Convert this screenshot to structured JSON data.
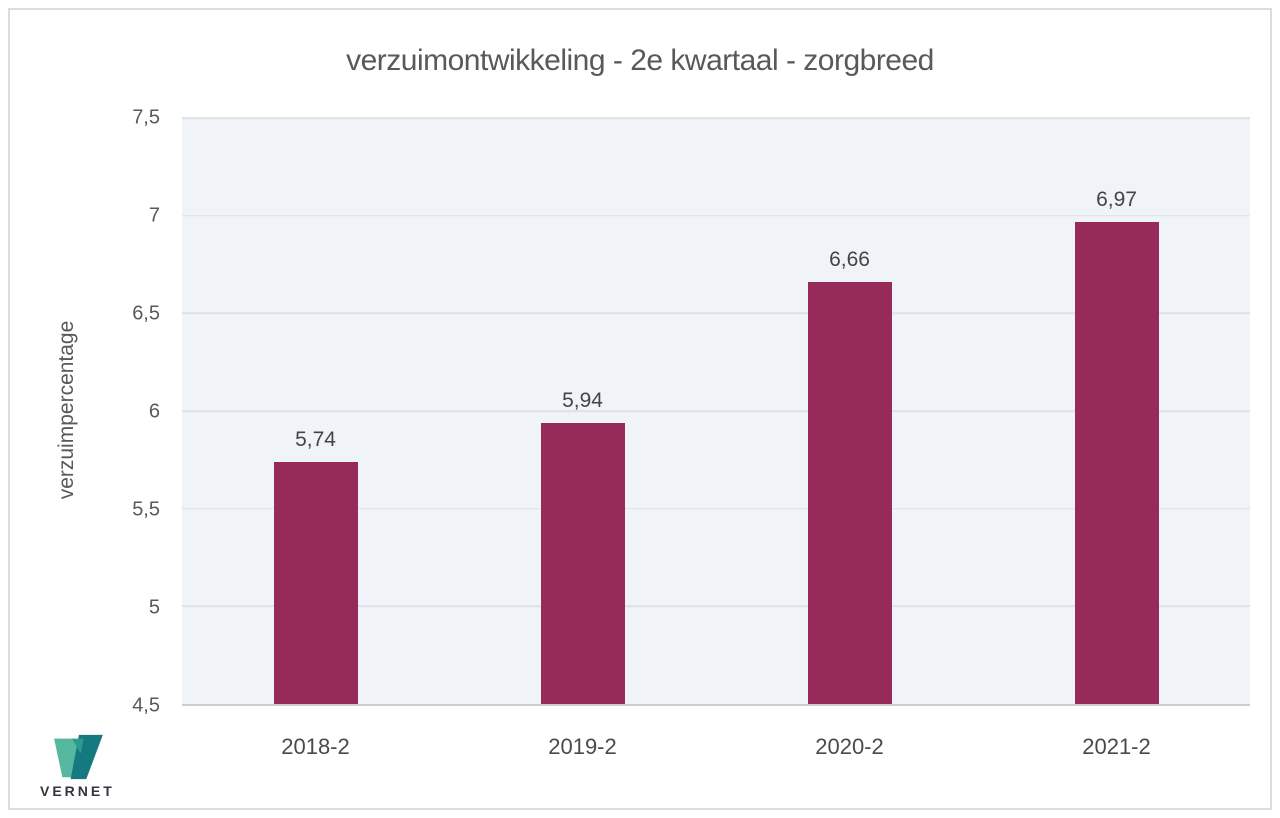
{
  "chart_data": {
    "type": "bar",
    "title": "verzuimontwikkeling - 2e kwartaal - zorgbreed",
    "ylabel": "verzuimpercentage",
    "xlabel": "",
    "categories": [
      "2018-2",
      "2019-2",
      "2020-2",
      "2021-2"
    ],
    "values": [
      5.74,
      5.94,
      6.66,
      6.97
    ],
    "value_labels": [
      "5,74",
      "5,94",
      "6,66",
      "6,97"
    ],
    "y_ticks": [
      "7,5",
      "7",
      "6,5",
      "6",
      "5,5",
      "5",
      "4,5"
    ],
    "y_tick_values": [
      7.5,
      7.0,
      6.5,
      6.0,
      5.5,
      5.0,
      4.5
    ],
    "ylim": [
      4.5,
      7.5
    ],
    "grid": true,
    "legend_position": "none",
    "bar_color": "#962a58",
    "plot_bg": "#f0f4f9",
    "grid_color": "#dce1e7",
    "axis_line_color": "#c9ced5",
    "text_color": "#595959"
  },
  "logo": {
    "text": "VERNET",
    "mark_color_light": "#56b89f",
    "mark_color_dark": "#157a80"
  }
}
